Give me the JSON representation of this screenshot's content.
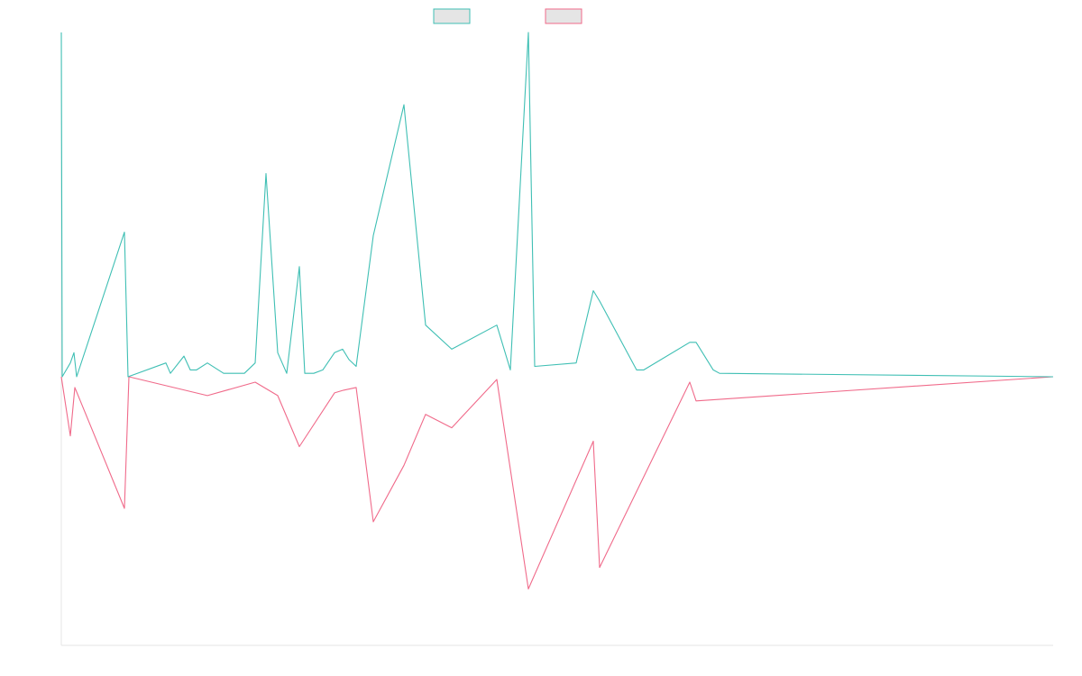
{
  "colors": {
    "series_a": "#3fbfb4",
    "series_b": "#f06a8a",
    "axis": "#e6e6e6",
    "legend_fill": "#e5e5e5"
  },
  "chart_data": {
    "type": "line",
    "title": "",
    "xlabel": "",
    "ylabel": "",
    "grid": false,
    "legend_position": "top-center",
    "xlim": [
      0,
      110
    ],
    "ylim": [
      -1,
      1
    ],
    "baseline": 0,
    "series": [
      {
        "color": "#3fbfb4",
        "direction": "up",
        "points": [
          [
            0,
            1.0
          ],
          [
            0.1,
            0
          ],
          [
            1.0,
            0.04
          ],
          [
            1.4,
            0.07
          ],
          [
            1.7,
            0
          ],
          [
            7.0,
            0.42
          ],
          [
            7.4,
            0
          ],
          [
            11.6,
            0.04
          ],
          [
            12.1,
            0.01
          ],
          [
            13.6,
            0.06
          ],
          [
            14.3,
            0.02
          ],
          [
            15.0,
            0.02
          ],
          [
            16.2,
            0.04
          ],
          [
            18.0,
            0.01
          ],
          [
            20.3,
            0.01
          ],
          [
            21.5,
            0.04
          ],
          [
            22.7,
            0.59
          ],
          [
            24.0,
            0.07
          ],
          [
            25.0,
            0.01
          ],
          [
            26.4,
            0.32
          ],
          [
            27.0,
            0.01
          ],
          [
            28.0,
            0.01
          ],
          [
            29.0,
            0.02
          ],
          [
            30.3,
            0.07
          ],
          [
            31.2,
            0.08
          ],
          [
            31.9,
            0.05
          ],
          [
            32.7,
            0.03
          ],
          [
            34.6,
            0.41
          ],
          [
            38.0,
            0.79
          ],
          [
            40.4,
            0.15
          ],
          [
            43.3,
            0.08
          ],
          [
            48.3,
            0.15
          ],
          [
            49.8,
            0.02
          ],
          [
            51.8,
            1.0
          ],
          [
            52.5,
            0.03
          ],
          [
            57.1,
            0.04
          ],
          [
            59.0,
            0.25
          ],
          [
            59.7,
            0.22
          ],
          [
            63.8,
            0.02
          ],
          [
            64.6,
            0.02
          ],
          [
            69.7,
            0.1
          ],
          [
            70.4,
            0.1
          ],
          [
            72.3,
            0.02
          ],
          [
            73.0,
            0.01
          ],
          [
            110,
            0
          ]
        ]
      },
      {
        "color": "#f06a8a",
        "direction": "down",
        "points": [
          [
            0,
            0
          ],
          [
            1.0,
            0.22
          ],
          [
            1.5,
            0.04
          ],
          [
            7.0,
            0.49
          ],
          [
            7.5,
            0
          ],
          [
            16.2,
            0.07
          ],
          [
            21.5,
            0.02
          ],
          [
            24.0,
            0.07
          ],
          [
            26.4,
            0.26
          ],
          [
            30.3,
            0.06
          ],
          [
            31.3,
            0.05
          ],
          [
            32.7,
            0.04
          ],
          [
            34.6,
            0.54
          ],
          [
            38.0,
            0.33
          ],
          [
            40.4,
            0.14
          ],
          [
            43.3,
            0.19
          ],
          [
            48.3,
            0.01
          ],
          [
            51.8,
            0.79
          ],
          [
            59.0,
            0.24
          ],
          [
            59.7,
            0.71
          ],
          [
            69.7,
            0.02
          ],
          [
            70.4,
            0.09
          ],
          [
            110,
            0
          ]
        ]
      }
    ],
    "legend": [
      {
        "color": "#3fbfb4"
      },
      {
        "color": "#f06a8a"
      }
    ]
  }
}
